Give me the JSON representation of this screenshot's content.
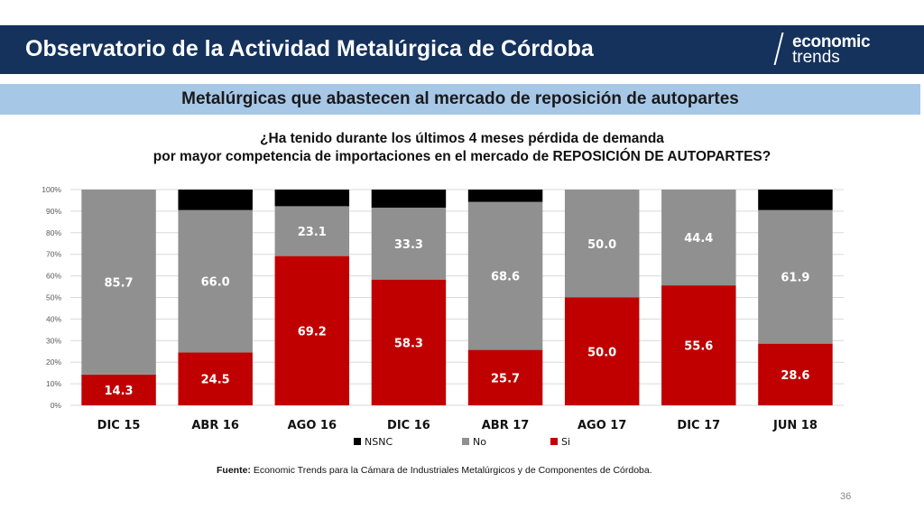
{
  "header": {
    "title": "Observatorio de la Actividad Metalúrgica de Córdoba",
    "logo_line1": "economic",
    "logo_line2": "trends"
  },
  "subtitle": "Metalúrgicas que abastecen al mercado de reposición de autopartes",
  "question_line1": "¿Ha tenido durante los últimos 4 meses pérdida de demanda",
  "question_line2": "por mayor competencia de importaciones en el mercado de REPOSICIÓN DE AUTOPARTES?",
  "source_label": "Fuente:",
  "source_text": " Economic Trends para la Cámara de Industriales Metalúrgicos y de Componentes de Córdoba.",
  "page_number": "36",
  "colors": {
    "header": "#14325c",
    "subbar": "#a7c7e7",
    "si": "#c00000",
    "no": "#909090",
    "nsnc": "#000000"
  },
  "chart_data": {
    "type": "bar",
    "stacked": true,
    "categories": [
      "DIC 15",
      "ABR 16",
      "AGO 16",
      "DIC 16",
      "ABR 17",
      "AGO 17",
      "DIC 17",
      "JUN 18"
    ],
    "series": [
      {
        "name": "Si",
        "color": "#c00000",
        "values": [
          14.3,
          24.5,
          69.2,
          58.3,
          25.7,
          50.0,
          55.6,
          28.6
        ],
        "labels": [
          "14.3",
          "24.5",
          "69.2",
          "58.3",
          "25.7",
          "50.0",
          "55.6",
          "28.6"
        ]
      },
      {
        "name": "No",
        "color": "#909090",
        "values": [
          85.7,
          66.0,
          23.1,
          33.3,
          68.6,
          50.0,
          44.4,
          61.9
        ],
        "labels": [
          "85.7",
          "66.0",
          "23.1",
          "33.3",
          "68.6",
          "50.0",
          "44.4",
          "61.9"
        ]
      },
      {
        "name": "NSNC",
        "color": "#000000",
        "values": [
          0.0,
          9.5,
          7.7,
          8.4,
          5.7,
          0.0,
          0.0,
          9.5
        ]
      }
    ],
    "yticks": [
      "0%",
      "10%",
      "20%",
      "30%",
      "40%",
      "50%",
      "60%",
      "70%",
      "80%",
      "90%",
      "100%"
    ],
    "ylim": [
      0,
      100
    ],
    "grid": true,
    "legend": {
      "position": "bottom",
      "order": [
        "NSNC",
        "No",
        "Si"
      ]
    }
  }
}
